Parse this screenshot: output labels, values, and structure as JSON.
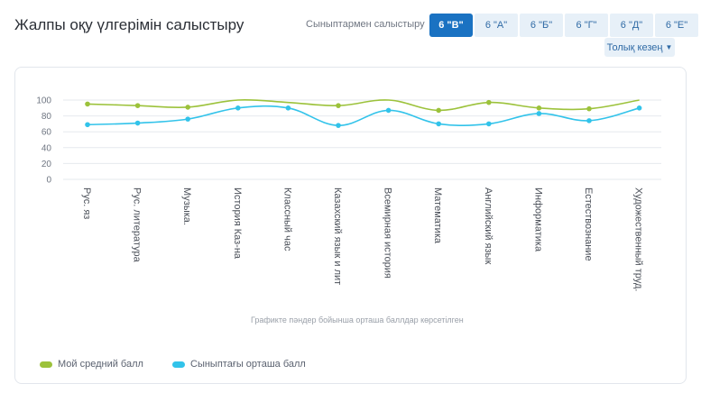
{
  "header": {
    "title": "Жалпы оқу үлгерімін салыстыру",
    "compare_label": "Сыныптармен салыстыру",
    "tabs": [
      "6 \"В\"",
      "6 \"А\"",
      "6 \"Б\"",
      "6 \"Г\"",
      "6 \"Д\"",
      "6 \"Е\""
    ],
    "active_tab": 0,
    "period_label": "Толық кезең"
  },
  "colors": {
    "my": "#9cc23b",
    "class": "#32c3ea",
    "accent": "#1a72c2",
    "grid": "#e6e9ee"
  },
  "chart_note": "Графикте пәндер бойынша орташа баллдар көрсетілген",
  "chart_data": {
    "type": "line",
    "categories": [
      "Рус. яз",
      "Рус. литература",
      "Музыка.",
      "История Каз-на",
      "Классный час",
      "Казахский язык и лит",
      "Всемирная история",
      "Математика",
      "Английский язык",
      "Информатика",
      "Естествознание",
      "Художественный труд."
    ],
    "series": [
      {
        "name": "Мой средний балл",
        "values": [
          95,
          93,
          91,
          100,
          97,
          93,
          100,
          87,
          97,
          90,
          89,
          100
        ],
        "markers": [
          true,
          true,
          true,
          false,
          false,
          true,
          false,
          true,
          true,
          true,
          true,
          false
        ]
      },
      {
        "name": "Сыныптағы орташа балл",
        "values": [
          69,
          71,
          76,
          90,
          90,
          68,
          87,
          70,
          70,
          83,
          74,
          90
        ]
      }
    ],
    "yticks": [
      0,
      20,
      40,
      60,
      80,
      100
    ],
    "ylim": [
      0,
      100
    ],
    "grid": true,
    "legend": "bottom-left"
  }
}
